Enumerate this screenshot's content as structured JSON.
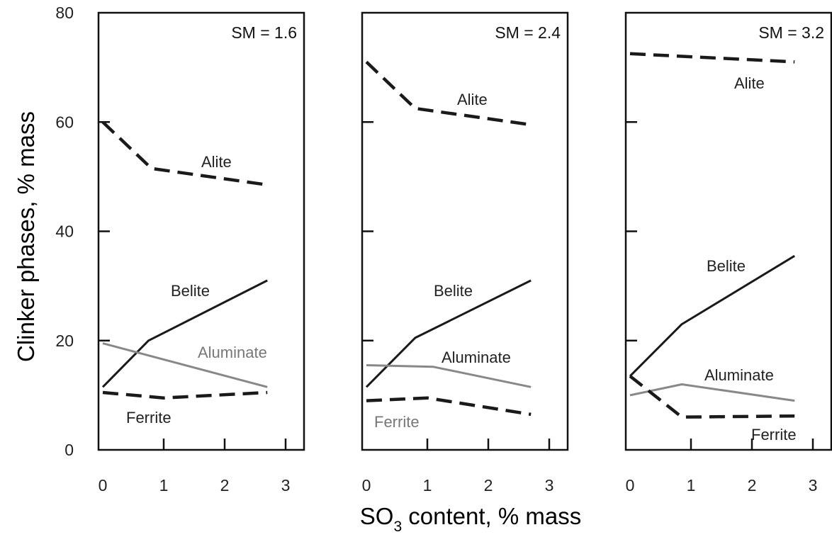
{
  "chart_data": {
    "type": "line",
    "ylabel": "Clinker phases, % mass",
    "xlabel_main": "SO",
    "xlabel_sub": "3",
    "xlabel_rest": " content, % mass",
    "ylim": [
      0,
      80
    ],
    "xlim": [
      0,
      3
    ],
    "y_ticks": [
      "0",
      "20",
      "40",
      "60",
      "80"
    ],
    "x_ticks": [
      "0",
      "1",
      "2",
      "3"
    ],
    "grid": false,
    "colors": {
      "dark": "#1a1a1a",
      "light": "#888888"
    },
    "panels": [
      {
        "title": "SM = 1.6",
        "series": [
          {
            "name": "Alite",
            "style": "dashed-dark",
            "x": [
              0,
              0.8,
              2.7
            ],
            "y": [
              60,
              51.5,
              48.5
            ]
          },
          {
            "name": "Belite",
            "style": "solid-dark",
            "x": [
              0,
              0.75,
              2.7
            ],
            "y": [
              11.5,
              20,
              31
            ]
          },
          {
            "name": "Aluminate",
            "style": "solid-light",
            "x": [
              0,
              2.7
            ],
            "y": [
              19.5,
              11.5
            ]
          },
          {
            "name": "Ferrite",
            "style": "dashed-dark",
            "x": [
              0,
              1,
              2.7
            ],
            "y": [
              10.5,
              9.5,
              10.5
            ]
          }
        ]
      },
      {
        "title": "SM = 2.4",
        "series": [
          {
            "name": "Alite",
            "style": "dashed-dark",
            "x": [
              0,
              0.8,
              2.7
            ],
            "y": [
              71,
              62.5,
              59.5
            ]
          },
          {
            "name": "Belite",
            "style": "solid-dark",
            "x": [
              0,
              0.8,
              2.7
            ],
            "y": [
              11.5,
              20.5,
              31
            ]
          },
          {
            "name": "Aluminate",
            "style": "solid-light",
            "x": [
              0,
              1.1,
              2.7
            ],
            "y": [
              15.5,
              15.2,
              11.5
            ]
          },
          {
            "name": "Ferrite",
            "style": "dashed-dark",
            "x": [
              0,
              1,
              2.7
            ],
            "y": [
              9,
              9.5,
              6.5
            ]
          }
        ]
      },
      {
        "title": "SM = 3.2",
        "series": [
          {
            "name": "Alite",
            "style": "dashed-dark",
            "x": [
              0,
              2.7
            ],
            "y": [
              72.5,
              71
            ]
          },
          {
            "name": "Belite",
            "style": "solid-dark",
            "x": [
              0,
              0.85,
              2.7
            ],
            "y": [
              13.5,
              23,
              35.5
            ]
          },
          {
            "name": "Aluminate",
            "style": "solid-light",
            "x": [
              0,
              0.85,
              2.7
            ],
            "y": [
              10,
              12,
              9
            ]
          },
          {
            "name": "Ferrite",
            "style": "dashed-dark",
            "x": [
              0,
              0.85,
              2.7
            ],
            "y": [
              13.5,
              6,
              6.2
            ]
          }
        ]
      }
    ]
  }
}
